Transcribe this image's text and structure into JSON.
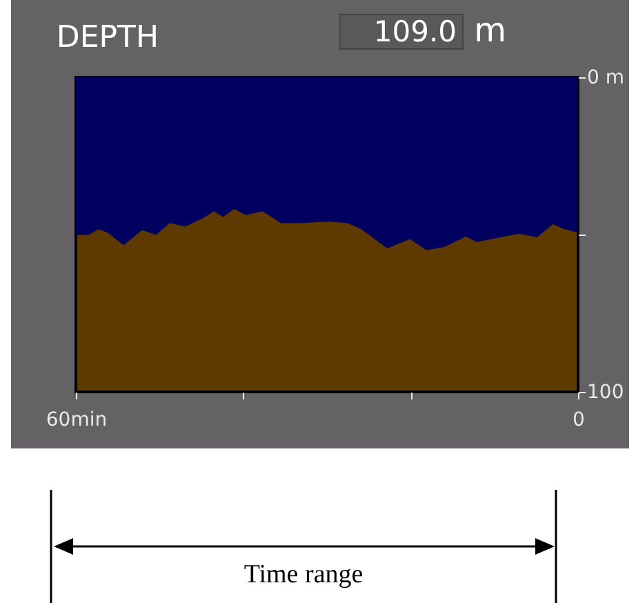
{
  "chart_data": {
    "type": "area",
    "title": "DEPTH",
    "annotations": [
      "109.0 m",
      "Time range"
    ],
    "x": [
      60,
      58.5,
      57.3,
      56.2,
      54.3,
      52.1,
      50.4,
      48.8,
      46.9,
      44.9,
      43.5,
      42.4,
      41.1,
      39.7,
      37.7,
      35.5,
      33.6,
      29.7,
      27.5,
      25.9,
      22.8,
      20.1,
      18.1,
      15.9,
      13.4,
      12.1,
      9.3,
      7.1,
      4.9,
      3.0,
      1.6,
      0
    ],
    "series": [
      {
        "color": "#00005e",
        "values": [
          50.1,
          50.1,
          48.3,
          49.4,
          53.4,
          48.6,
          50.1,
          46.4,
          47.4,
          44.9,
          42.6,
          44.4,
          41.9,
          43.8,
          42.6,
          46.4,
          46.4,
          45.9,
          46.4,
          48.3,
          54.4,
          51.4,
          55.0,
          53.9,
          50.6,
          52.4,
          50.9,
          49.7,
          50.9,
          46.7,
          48.3,
          49.4
        ]
      }
    ],
    "xlim": [
      60,
      0
    ],
    "xticks": [
      {
        "value": 60,
        "label": "60min"
      },
      {
        "value": 40,
        "label": null
      },
      {
        "value": 20,
        "label": null
      },
      {
        "value": 0,
        "label": "0"
      }
    ],
    "ylim": [
      100,
      0
    ],
    "yticks": [
      {
        "value": 0,
        "label": "0 m"
      },
      {
        "value": 50,
        "label": null
      },
      100
    ],
    "grid": false
  }
}
